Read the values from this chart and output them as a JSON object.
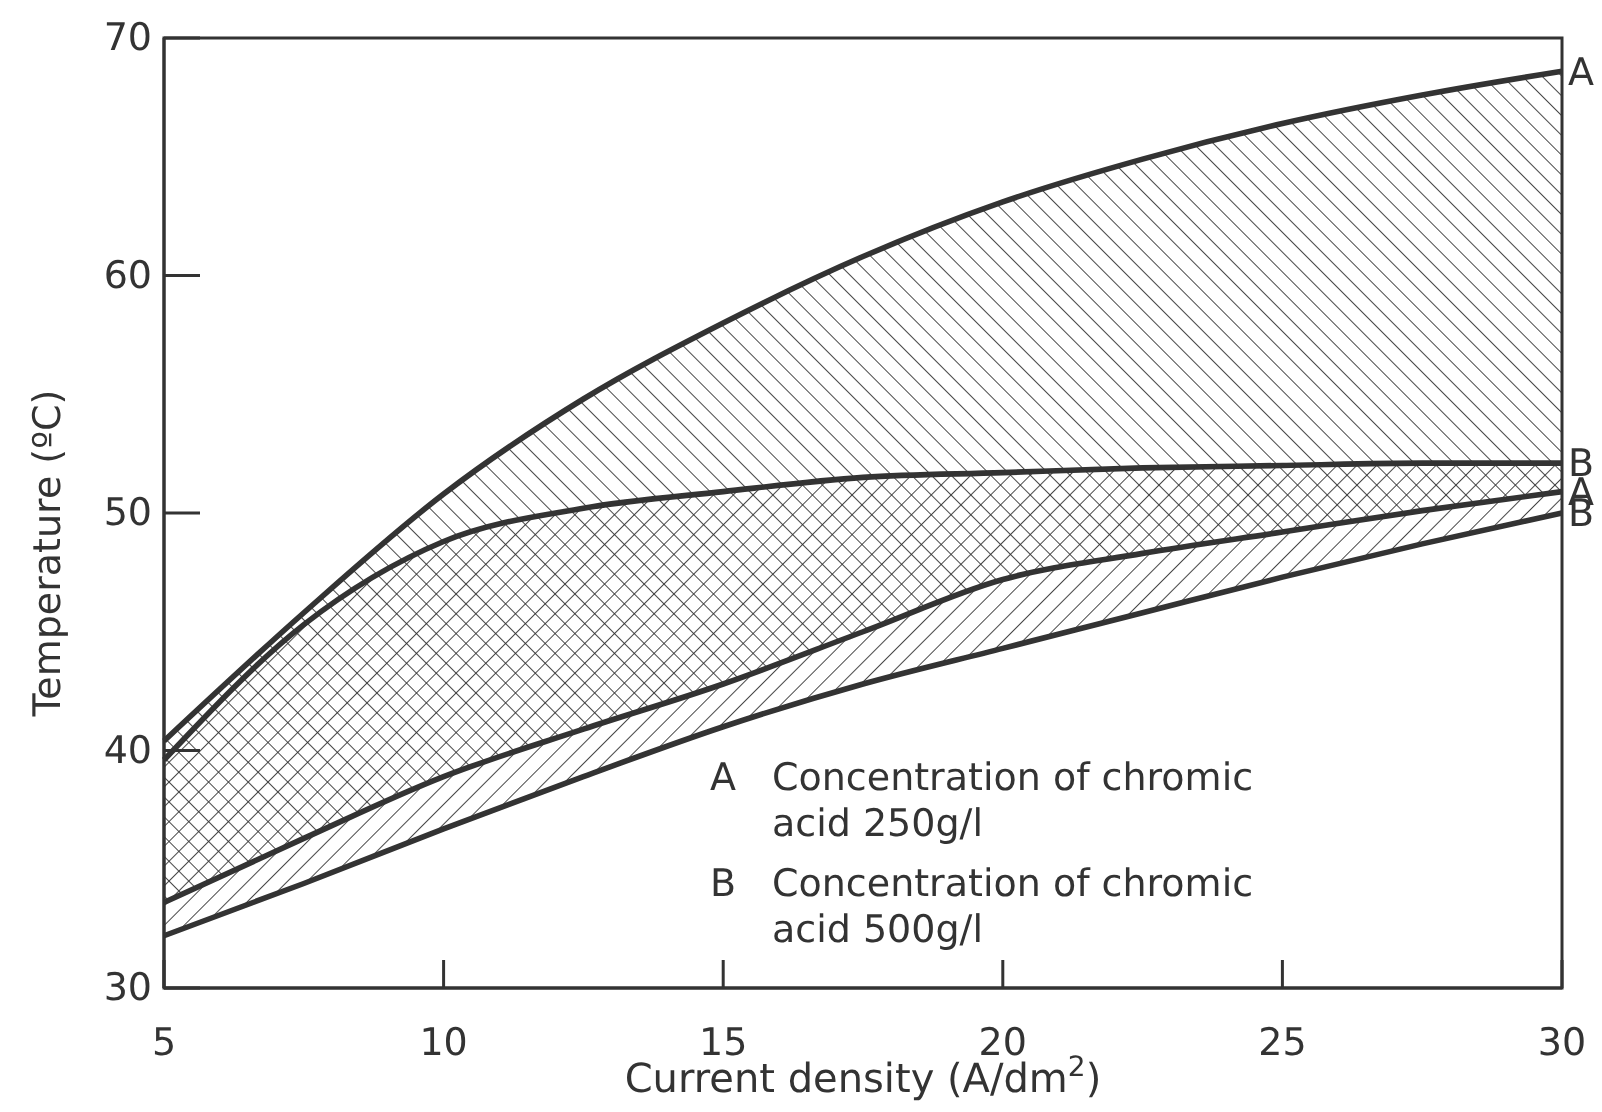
{
  "chart_data": {
    "type": "line",
    "xlabel": "Current density (A/dm$^{2}$)",
    "ylabel": "Temperature (ºC)",
    "xlim": [
      5,
      30
    ],
    "ylim": [
      30,
      70
    ],
    "xticks": [
      5,
      10,
      15,
      20,
      25,
      30
    ],
    "yticks": [
      30,
      40,
      50,
      60,
      70
    ],
    "grid": false,
    "x": [
      5,
      7.5,
      10,
      12.5,
      15,
      17.5,
      20,
      22.5,
      25,
      27.5,
      30
    ],
    "series": [
      {
        "name": "A",
        "color": "#333333",
        "values": [
          40.4,
          45.8,
          50.8,
          54.8,
          58.0,
          60.8,
          63.1,
          64.9,
          66.4,
          67.6,
          68.6
        ],
        "lower": [
          33.6,
          36.3,
          38.9,
          40.9,
          42.8,
          45.0,
          47.2,
          48.3,
          49.2,
          50.1,
          50.9
        ],
        "upper": [
          40.4,
          45.8,
          50.8,
          54.8,
          58.0,
          60.8,
          63.1,
          64.9,
          66.4,
          67.6,
          68.6
        ]
      },
      {
        "name": "A",
        "color": "#333333",
        "values": [
          33.6,
          36.3,
          38.9,
          40.9,
          42.8,
          45.0,
          47.2,
          48.3,
          49.2,
          50.1,
          50.9
        ]
      },
      {
        "name": "B",
        "color": "#333333",
        "values": [
          39.6,
          45.3,
          48.8,
          50.2,
          50.9,
          51.5,
          51.7,
          51.9,
          52.0,
          52.1,
          52.1
        ],
        "lower": [
          32.2,
          34.4,
          36.7,
          38.9,
          41.0,
          42.8,
          44.3,
          45.8,
          47.3,
          48.7,
          50.0
        ],
        "upper": [
          39.6,
          45.3,
          48.8,
          50.2,
          50.9,
          51.5,
          51.7,
          51.9,
          52.0,
          52.1,
          52.1
        ]
      },
      {
        "name": "B",
        "color": "#333333",
        "values": [
          32.2,
          34.4,
          36.7,
          38.9,
          41.0,
          42.8,
          44.3,
          45.8,
          47.3,
          48.7,
          50.0
        ]
      }
    ],
    "annotations": [
      "A Concentration of chromic acid 250g/l",
      "B Concentration of chromic acid 500g/l"
    ]
  }
}
